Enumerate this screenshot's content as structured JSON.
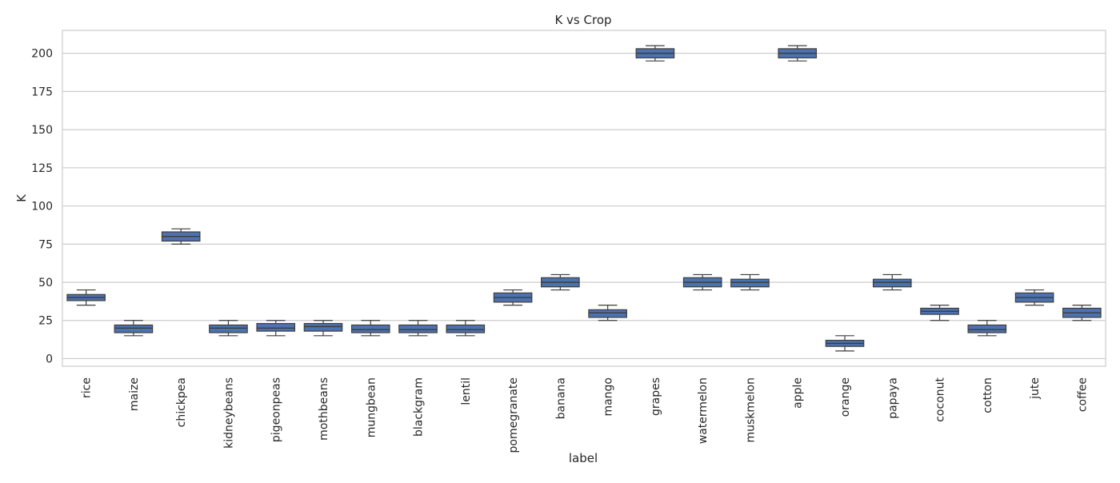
{
  "chart_data": {
    "type": "box",
    "title": "K vs Crop",
    "xlabel": "label",
    "ylabel": "K",
    "ylim": [
      -5,
      215
    ],
    "yticks": [
      0,
      25,
      50,
      75,
      100,
      125,
      150,
      175,
      200
    ],
    "grid": true,
    "box_color": "#4C72B0",
    "edge_color": "#3d3d3d",
    "grid_color": "#cccccc",
    "categories": [
      "rice",
      "maize",
      "chickpea",
      "kidneybeans",
      "pigeonpeas",
      "mothbeans",
      "mungbean",
      "blackgram",
      "lentil",
      "pomegranate",
      "banana",
      "mango",
      "grapes",
      "watermelon",
      "muskmelon",
      "apple",
      "orange",
      "papaya",
      "coconut",
      "cotton",
      "jute",
      "coffee"
    ],
    "boxes": [
      {
        "min": 35,
        "q1": 38,
        "median": 40,
        "q3": 42,
        "max": 45
      },
      {
        "min": 15,
        "q1": 17,
        "median": 20,
        "q3": 22,
        "max": 25
      },
      {
        "min": 75,
        "q1": 77,
        "median": 80,
        "q3": 83,
        "max": 85
      },
      {
        "min": 15,
        "q1": 17,
        "median": 20,
        "q3": 22,
        "max": 25
      },
      {
        "min": 15,
        "q1": 18,
        "median": 20,
        "q3": 23,
        "max": 25
      },
      {
        "min": 15,
        "q1": 18,
        "median": 21,
        "q3": 23,
        "max": 25
      },
      {
        "min": 15,
        "q1": 17,
        "median": 19,
        "q3": 22,
        "max": 25
      },
      {
        "min": 15,
        "q1": 17,
        "median": 19,
        "q3": 22,
        "max": 25
      },
      {
        "min": 15,
        "q1": 17,
        "median": 19,
        "q3": 22,
        "max": 25
      },
      {
        "min": 35,
        "q1": 37,
        "median": 40,
        "q3": 43,
        "max": 45
      },
      {
        "min": 45,
        "q1": 47,
        "median": 50,
        "q3": 53,
        "max": 55
      },
      {
        "min": 25,
        "q1": 27,
        "median": 30,
        "q3": 32,
        "max": 35
      },
      {
        "min": 195,
        "q1": 197,
        "median": 200,
        "q3": 203,
        "max": 205
      },
      {
        "min": 45,
        "q1": 47,
        "median": 50,
        "q3": 53,
        "max": 55
      },
      {
        "min": 45,
        "q1": 47,
        "median": 50,
        "q3": 52,
        "max": 55
      },
      {
        "min": 195,
        "q1": 197,
        "median": 200,
        "q3": 203,
        "max": 205
      },
      {
        "min": 5,
        "q1": 8,
        "median": 10,
        "q3": 12,
        "max": 15
      },
      {
        "min": 45,
        "q1": 47,
        "median": 50,
        "q3": 52,
        "max": 55
      },
      {
        "min": 25,
        "q1": 29,
        "median": 31,
        "q3": 33,
        "max": 35
      },
      {
        "min": 15,
        "q1": 17,
        "median": 19,
        "q3": 22,
        "max": 25
      },
      {
        "min": 35,
        "q1": 37,
        "median": 40,
        "q3": 43,
        "max": 45
      },
      {
        "min": 25,
        "q1": 27,
        "median": 30,
        "q3": 33,
        "max": 35
      }
    ]
  }
}
